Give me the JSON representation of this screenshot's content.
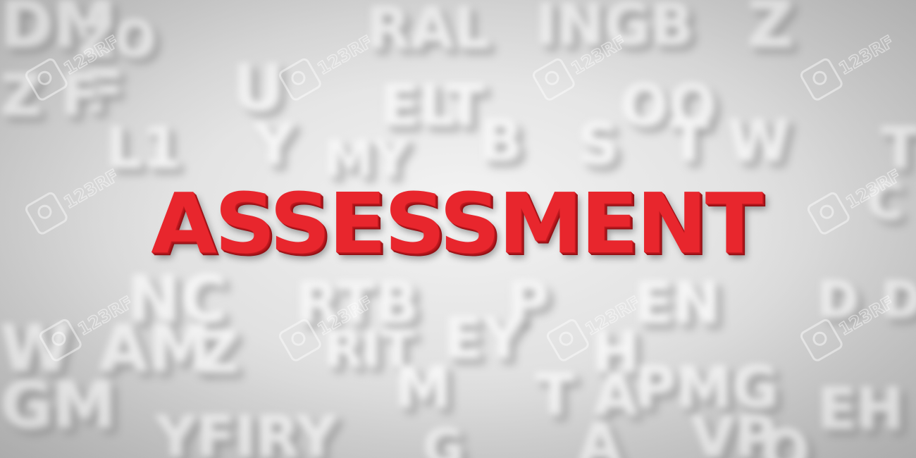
{
  "headline": {
    "text": "ASSESSMENT",
    "color": "#e8262d"
  },
  "background_letters": [
    "DM",
    "ZO",
    "RAL",
    "INGB",
    "Z",
    "F",
    "Z F",
    "U",
    "ELT",
    "OO",
    "B",
    "S",
    "T W",
    "Y",
    "L1",
    "MY",
    "T",
    "C",
    "NC",
    "RTB",
    "P",
    "EN",
    "D",
    "DV",
    "W",
    "AM",
    "Z",
    "RIT",
    "EY",
    "H",
    "GM",
    "M",
    "T A",
    "PMG",
    "EH",
    "YFIRY",
    "VP",
    "A",
    "G",
    "O"
  ],
  "watermarks": [
    "123RF",
    "123RF",
    "123RF",
    "123RF",
    "123RF",
    "123RF",
    "123RF",
    "123RF",
    "123RF",
    "123RF"
  ]
}
